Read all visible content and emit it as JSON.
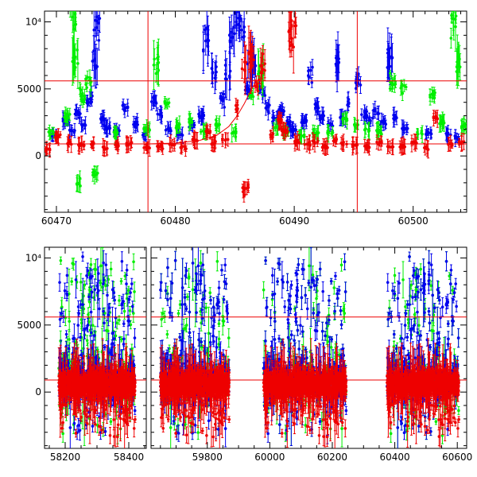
{
  "chart_data": [
    {
      "type": "scatter",
      "title": "",
      "xlabel": "",
      "ylabel": "",
      "xlim": [
        60469,
        60504.5
      ],
      "ylim": [
        -4200,
        10800
      ],
      "x_ticks": [
        {
          "value": 60470,
          "label": "60470"
        },
        {
          "value": 60480,
          "label": "60480"
        },
        {
          "value": 60490,
          "label": "60490"
        },
        {
          "value": 60500,
          "label": "60500"
        }
      ],
      "y_ticks": [
        {
          "value": 0,
          "label": "0"
        },
        {
          "value": 5000,
          "label": "5000"
        },
        {
          "value": 10000,
          "label": "10⁴"
        }
      ],
      "grid": false,
      "reference_lines": {
        "horizontal": [
          900,
          5600
        ],
        "vertical": [
          60477.7,
          60495.3
        ],
        "color": "#ee0000"
      },
      "fit_curve": {
        "description": "rising red curve between the two vertical lines",
        "x": [
          60477.7,
          60480.0,
          60482.0,
          60483.5,
          60484.5,
          60485.2,
          60485.8,
          60486.3,
          60486.8
        ],
        "y": [
          900,
          960,
          1150,
          1550,
          2200,
          3000,
          3900,
          4800,
          5600
        ]
      },
      "series": [
        {
          "color": "#0000ee",
          "points": [
            [
              60469.8,
              1500
            ],
            [
              60470.8,
              2600
            ],
            [
              60471.3,
              1900
            ],
            [
              60471.8,
              3100
            ],
            [
              60472.3,
              2300
            ],
            [
              60472.8,
              4200
            ],
            [
              60473.2,
              7000
            ],
            [
              60473.4,
              9800
            ],
            [
              60473.8,
              2700
            ],
            [
              60474.3,
              2100
            ],
            [
              60475.1,
              1900
            ],
            [
              60475.8,
              3600
            ],
            [
              60476.6,
              2400
            ],
            [
              60477.3,
              1600
            ],
            [
              60478.2,
              4200
            ],
            [
              60478.7,
              3100
            ],
            [
              60479.4,
              2000
            ],
            [
              60480.4,
              1600
            ],
            [
              60481.4,
              2300
            ],
            [
              60482.2,
              3000
            ],
            [
              60482.6,
              8500
            ],
            [
              60483.2,
              6500
            ],
            [
              60483.9,
              4200
            ],
            [
              60484.4,
              6200
            ],
            [
              60484.8,
              8800
            ],
            [
              60485.2,
              10400
            ],
            [
              60485.6,
              9300
            ],
            [
              60486.0,
              5000
            ],
            [
              60486.3,
              7300
            ],
            [
              60486.6,
              6600
            ],
            [
              60487.3,
              4800
            ],
            [
              60487.8,
              3600
            ],
            [
              60488.4,
              2800
            ],
            [
              60488.9,
              3300
            ],
            [
              60489.4,
              2400
            ],
            [
              60489.9,
              1900
            ],
            [
              60490.8,
              2600
            ],
            [
              60491.3,
              6000
            ],
            [
              60491.9,
              3600
            ],
            [
              60492.4,
              3000
            ],
            [
              60493.0,
              2300
            ],
            [
              60493.6,
              7000
            ],
            [
              60494.1,
              2900
            ],
            [
              60494.7,
              4000
            ],
            [
              60495.4,
              5600
            ],
            [
              60495.9,
              3100
            ],
            [
              60496.4,
              2600
            ],
            [
              60496.9,
              3300
            ],
            [
              60497.5,
              2500
            ],
            [
              60498.0,
              7200
            ],
            [
              60498.5,
              2900
            ],
            [
              60499.3,
              2000
            ],
            [
              60501.3,
              1700
            ],
            [
              60503.0,
              1600
            ],
            [
              60503.7,
              1400
            ]
          ]
        },
        {
          "color": "#00ee00",
          "points": [
            [
              60469.6,
              1700
            ],
            [
              60470.9,
              2900
            ],
            [
              60471.4,
              10700
            ],
            [
              60471.6,
              7300
            ],
            [
              60471.9,
              -2000
            ],
            [
              60472.2,
              4600
            ],
            [
              60472.7,
              5500
            ],
            [
              60473.3,
              -1300
            ],
            [
              60474.9,
              1700
            ],
            [
              60477.6,
              2000
            ],
            [
              60478.4,
              7000
            ],
            [
              60479.3,
              3800
            ],
            [
              60480.3,
              2200
            ],
            [
              60481.4,
              2600
            ],
            [
              60482.4,
              1800
            ],
            [
              60483.6,
              2300
            ],
            [
              60484.9,
              1800
            ],
            [
              60486.4,
              4500
            ],
            [
              60487.2,
              6200
            ],
            [
              60488.4,
              2100
            ],
            [
              60489.3,
              1800
            ],
            [
              60490.6,
              1500
            ],
            [
              60491.8,
              1700
            ],
            [
              60493.0,
              1800
            ],
            [
              60494.3,
              2700
            ],
            [
              60495.3,
              2300
            ],
            [
              60496.1,
              1900
            ],
            [
              60497.1,
              1800
            ],
            [
              60498.3,
              5500
            ],
            [
              60499.2,
              5000
            ],
            [
              60500.6,
              1700
            ],
            [
              60501.6,
              4700
            ],
            [
              60502.4,
              2500
            ],
            [
              60503.4,
              10200
            ],
            [
              60503.8,
              6900
            ],
            [
              60504.2,
              2200
            ]
          ]
        },
        {
          "color": "#ee0000",
          "points": [
            [
              60469.2,
              500
            ],
            [
              60470.1,
              1500
            ],
            [
              60471.1,
              1000
            ],
            [
              60472.1,
              800
            ],
            [
              60473.1,
              900
            ],
            [
              60474.1,
              600
            ],
            [
              60475.1,
              800
            ],
            [
              60476.1,
              900
            ],
            [
              60477.6,
              600
            ],
            [
              60478.7,
              700
            ],
            [
              60479.7,
              900
            ],
            [
              60480.7,
              600
            ],
            [
              60481.7,
              1200
            ],
            [
              60482.7,
              1800
            ],
            [
              60483.2,
              900
            ],
            [
              60484.2,
              1200
            ],
            [
              60485.1,
              3600
            ],
            [
              60485.7,
              6500
            ],
            [
              60485.9,
              -2500
            ],
            [
              60486.4,
              7300
            ],
            [
              60486.9,
              5400
            ],
            [
              60487.4,
              6600
            ],
            [
              60488.2,
              1500
            ],
            [
              60488.7,
              2600
            ],
            [
              60489.2,
              1900
            ],
            [
              60489.7,
              8700
            ],
            [
              60489.9,
              9400
            ],
            [
              60490.3,
              1100
            ],
            [
              60491.1,
              900
            ],
            [
              60491.8,
              1100
            ],
            [
              60492.6,
              700
            ],
            [
              60493.4,
              1200
            ],
            [
              60494.2,
              900
            ],
            [
              60495.1,
              800
            ],
            [
              60496.1,
              700
            ],
            [
              60497.1,
              1000
            ],
            [
              60498.1,
              700
            ],
            [
              60499.1,
              700
            ],
            [
              60500.1,
              1000
            ],
            [
              60501.1,
              600
            ],
            [
              60501.9,
              2800
            ],
            [
              60503.1,
              900
            ],
            [
              60504.1,
              1000
            ]
          ]
        }
      ]
    },
    {
      "type": "scatter",
      "title": "",
      "xlabel": "",
      "ylabel": "",
      "broken_x_axis": true,
      "ylim": [
        -4200,
        10800
      ],
      "y_ticks": [
        {
          "value": 0,
          "label": "0"
        },
        {
          "value": 5000,
          "label": "5000"
        },
        {
          "value": 10000,
          "label": "10⁴"
        }
      ],
      "grid": false,
      "reference_lines": {
        "horizontal": [
          900,
          5600
        ],
        "color": "#ee0000"
      },
      "segments": [
        {
          "xlim": [
            58135,
            58455
          ],
          "x_ticks": [
            {
              "value": 58200,
              "label": "58200"
            },
            {
              "value": 58400,
              "label": "58400"
            }
          ],
          "observed_ranges": [
            [
              58180,
              58420
            ]
          ]
        },
        {
          "xlim": [
            59620,
            60630
          ],
          "x_ticks": [
            {
              "value": 59800,
              "label": "59800"
            },
            {
              "value": 60000,
              "label": "60000"
            },
            {
              "value": 60200,
              "label": "60200"
            },
            {
              "value": 60400,
              "label": "60400"
            },
            {
              "value": 60600,
              "label": "60600"
            }
          ],
          "observed_ranges": [
            [
              59650,
              59870
            ],
            [
              59980,
              60245
            ],
            [
              60375,
              60605
            ]
          ]
        }
      ],
      "series": [
        {
          "color": "#00ee00"
        },
        {
          "color": "#0000ee"
        },
        {
          "color": "#ee0000"
        }
      ]
    }
  ]
}
